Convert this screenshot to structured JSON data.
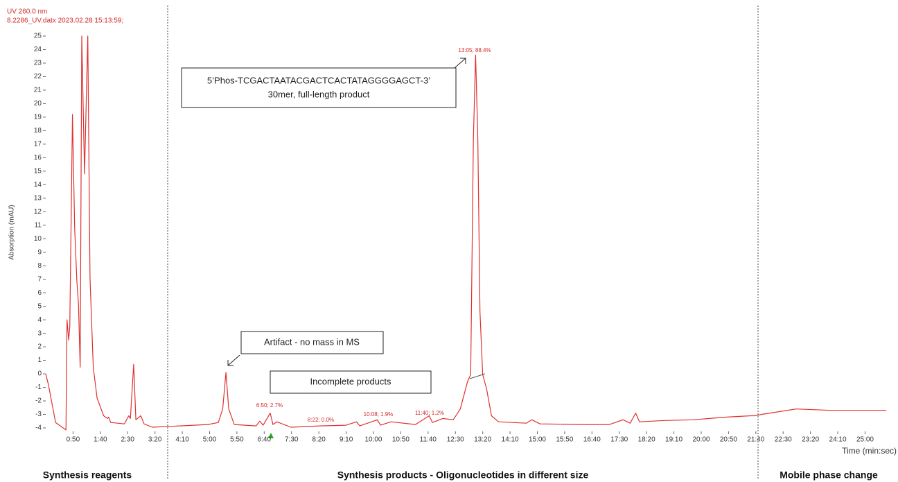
{
  "chart_data": {
    "type": "line",
    "header": [
      "UV 260.0 nm",
      "8.2286_UV.datx 2023.02.28 15:13:59;"
    ],
    "ylabel": "Absorption (mAU)",
    "xlabel": "Time (min:sec)",
    "xlim": [
      0,
      1540
    ],
    "ylim": [
      -4,
      25
    ],
    "xticks": [
      {
        "value": 50,
        "label": "0:50"
      },
      {
        "value": 100,
        "label": "1:40"
      },
      {
        "value": 150,
        "label": "2:30"
      },
      {
        "value": 200,
        "label": "3:20"
      },
      {
        "value": 250,
        "label": "4:10"
      },
      {
        "value": 300,
        "label": "5:00"
      },
      {
        "value": 350,
        "label": "5:50"
      },
      {
        "value": 400,
        "label": "6:40"
      },
      {
        "value": 450,
        "label": "7:30"
      },
      {
        "value": 500,
        "label": "8:20"
      },
      {
        "value": 550,
        "label": "9:10"
      },
      {
        "value": 600,
        "label": "10:00"
      },
      {
        "value": 650,
        "label": "10:50"
      },
      {
        "value": 700,
        "label": "11:40"
      },
      {
        "value": 750,
        "label": "12:30"
      },
      {
        "value": 800,
        "label": "13:20"
      },
      {
        "value": 850,
        "label": "14:10"
      },
      {
        "value": 900,
        "label": "15:00"
      },
      {
        "value": 950,
        "label": "15:50"
      },
      {
        "value": 1000,
        "label": "16:40"
      },
      {
        "value": 1050,
        "label": "17:30"
      },
      {
        "value": 1100,
        "label": "18:20"
      },
      {
        "value": 1150,
        "label": "19:10"
      },
      {
        "value": 1200,
        "label": "20:00"
      },
      {
        "value": 1250,
        "label": "20:50"
      },
      {
        "value": 1300,
        "label": "21:40"
      },
      {
        "value": 1350,
        "label": "22:30"
      },
      {
        "value": 1400,
        "label": "23:20"
      },
      {
        "value": 1450,
        "label": "24:10"
      },
      {
        "value": 1500,
        "label": "25:00"
      }
    ],
    "yticks": [
      -4,
      -3,
      -2,
      -1,
      0,
      1,
      2,
      3,
      4,
      5,
      6,
      7,
      8,
      9,
      10,
      11,
      12,
      13,
      14,
      15,
      16,
      17,
      18,
      19,
      20,
      21,
      22,
      23,
      24,
      25
    ],
    "series": [
      {
        "name": "UV 260.0 nm",
        "color": "#e03030",
        "x": [
          0,
          5,
          18,
          37,
          39,
          42,
          44,
          49,
          53,
          57,
          60,
          63,
          66,
          71,
          77,
          81,
          87,
          94,
          106,
          113,
          115,
          119,
          144,
          152,
          155,
          161,
          165,
          174,
          180,
          195,
          246,
          297,
          316,
          324,
          330,
          335,
          345,
          385,
          392,
          398,
          411,
          416,
          423,
          449,
          502,
          550,
          569,
          575,
          607,
          613,
          632,
          677,
          702,
          708,
          727,
          746,
          759,
          772,
          778,
          783,
          787,
          791,
          795,
          800,
          807,
          816,
          829,
          880,
          890,
          905,
          981,
          1032,
          1057,
          1070,
          1080,
          1087,
          1133,
          1184,
          1247,
          1291,
          1298,
          1311,
          1374,
          1437,
          1539
        ],
        "values": [
          0,
          -0.8,
          -3.6,
          -4.15,
          4,
          2.5,
          3.5,
          19.2,
          10.7,
          6.9,
          5.1,
          0.5,
          25,
          14.8,
          25,
          7.1,
          0.5,
          -1.8,
          -3.1,
          -3.3,
          -3.2,
          -3.6,
          -3.7,
          -3.1,
          -3.3,
          0.7,
          -3.4,
          -3.1,
          -3.7,
          -3.95,
          -3.85,
          -3.75,
          -3.6,
          -2.6,
          0.1,
          -2.6,
          -3.75,
          -3.85,
          -3.5,
          -3.8,
          -2.9,
          -3.75,
          -3.55,
          -3.95,
          -3.85,
          -3.8,
          -3.55,
          -3.85,
          -3.4,
          -3.8,
          -3.55,
          -3.75,
          -3.1,
          -3.6,
          -3.3,
          -3.4,
          -2.6,
          -0.6,
          -0.05,
          17.4,
          23.6,
          17.4,
          4.6,
          -0.05,
          -1.1,
          -3.1,
          -3.55,
          -3.65,
          -3.4,
          -3.7,
          -3.75,
          -3.75,
          -3.4,
          -3.65,
          -2.9,
          -3.55,
          -3.45,
          -3.4,
          -3.2,
          -3.1,
          -3.1,
          -3.0,
          -2.6,
          -2.7,
          -2.7
        ]
      }
    ],
    "peak_labels": [
      "13:05; 88.4%",
      "6:50; 2.7%",
      "8:22; 0.0%",
      "10:08; 1.9%",
      "11:40; 1.2%"
    ],
    "annotations": [
      [
        "5’Phos-TCGACTAATACGACTCACTATAGGGGAGCT-3’",
        "30mer, full-length product"
      ],
      [
        "Artifact - no mass in MS"
      ],
      [
        "Incomplete products"
      ]
    ],
    "regions": [
      "Synthesis reagents",
      "Synthesis products - Oligonucleotides in different size",
      "Mobile phase change"
    ]
  }
}
